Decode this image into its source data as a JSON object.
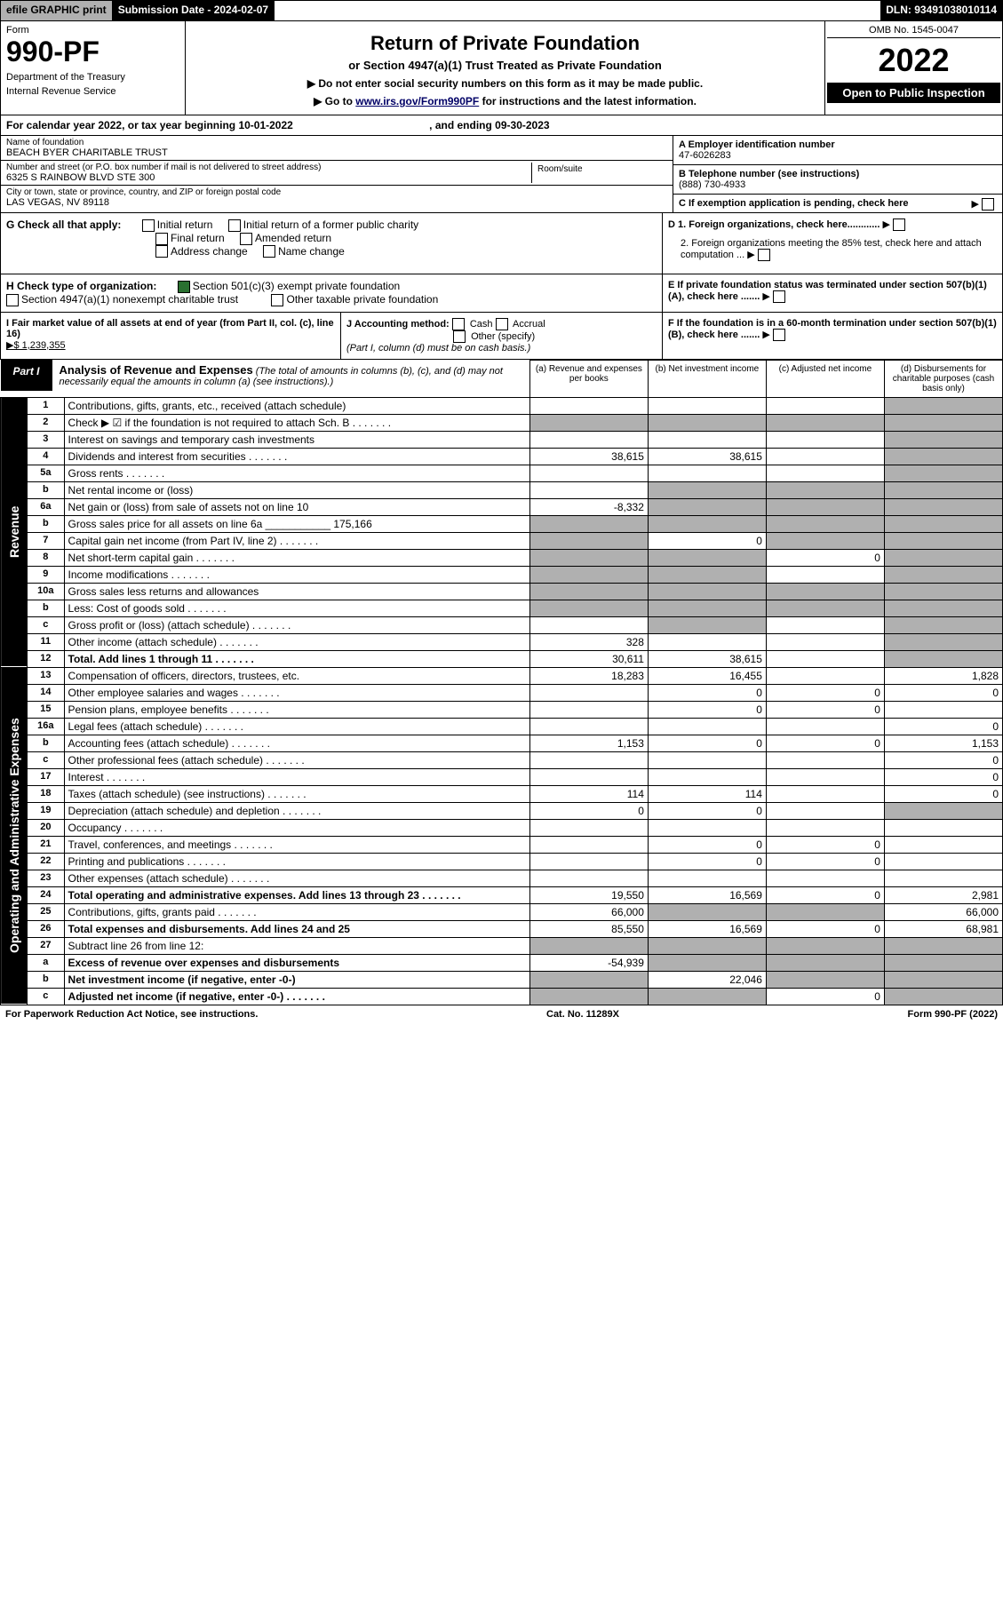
{
  "top_bar": {
    "efile": "efile GRAPHIC print",
    "sub_date_label": "Submission Date - 2024-02-07",
    "dln": "DLN: 93491038010114"
  },
  "header": {
    "form_label": "Form",
    "form_number": "990-PF",
    "dept1": "Department of the Treasury",
    "dept2": "Internal Revenue Service",
    "title": "Return of Private Foundation",
    "subtitle": "or Section 4947(a)(1) Trust Treated as Private Foundation",
    "inst1": "▶ Do not enter social security numbers on this form as it may be made public.",
    "inst2": "▶ Go to ",
    "inst2_link": "www.irs.gov/Form990PF",
    "inst2_suffix": " for instructions and the latest information.",
    "omb": "OMB No. 1545-0047",
    "year": "2022",
    "open_public": "Open to Public Inspection"
  },
  "calyear": "For calendar year 2022, or tax year beginning 10-01-2022",
  "calyear_end": ", and ending 09-30-2023",
  "entity": {
    "name_label": "Name of foundation",
    "name": "BEACH BYER CHARITABLE TRUST",
    "addr_label": "Number and street (or P.O. box number if mail is not delivered to street address)",
    "addr": "6325 S RAINBOW BLVD STE 300",
    "room_label": "Room/suite",
    "city_label": "City or town, state or province, country, and ZIP or foreign postal code",
    "city": "LAS VEGAS, NV  89118",
    "ein_label": "A Employer identification number",
    "ein": "47-6026283",
    "tel_label": "B Telephone number (see instructions)",
    "tel": "(888) 730-4933",
    "c_label": "C If exemption application is pending, check here"
  },
  "checks_G": {
    "label": "G Check all that apply:",
    "items": [
      "Initial return",
      "Initial return of a former public charity",
      "Final return",
      "Amended return",
      "Address change",
      "Name change"
    ]
  },
  "checks_D": {
    "d1": "D 1. Foreign organizations, check here............",
    "d2": "2. Foreign organizations meeting the 85% test, check here and attach computation ..."
  },
  "checks_H": {
    "label": "H Check type of organization:",
    "opt1": "Section 501(c)(3) exempt private foundation",
    "opt2": "Section 4947(a)(1) nonexempt charitable trust",
    "opt3": "Other taxable private foundation"
  },
  "checks_E": "E  If private foundation status was terminated under section 507(b)(1)(A), check here .......",
  "sec_I": {
    "label": "I Fair market value of all assets at end of year (from Part II, col. (c), line 16)",
    "val": "▶$  1,239,355"
  },
  "sec_J": {
    "label": "J Accounting method:",
    "cash": "Cash",
    "accrual": "Accrual",
    "other": "Other (specify)",
    "note": "(Part I, column (d) must be on cash basis.)"
  },
  "sec_F": "F  If the foundation is in a 60-month termination under section 507(b)(1)(B), check here .......",
  "part1": {
    "label": "Part I",
    "title": "Analysis of Revenue and Expenses",
    "title_note": "(The total of amounts in columns (b), (c), and (d) may not necessarily equal the amounts in column (a) (see instructions).)"
  },
  "columns": {
    "a": "(a) Revenue and expenses per books",
    "b": "(b) Net investment income",
    "c": "(c) Adjusted net income",
    "d": "(d) Disbursements for charitable purposes (cash basis only)"
  },
  "vert_labels": {
    "revenue": "Revenue",
    "expenses": "Operating and Administrative Expenses"
  },
  "rows": [
    {
      "no": "1",
      "desc": "Contributions, gifts, grants, etc., received (attach schedule)",
      "a": "",
      "b": "",
      "c": "",
      "d": "",
      "d_shaded": true
    },
    {
      "no": "2",
      "desc": "Check ▶ ☑ if the foundation is not required to attach Sch. B",
      "dots": true,
      "a": "",
      "b": "",
      "c": "",
      "d": "",
      "all_shaded": true
    },
    {
      "no": "3",
      "desc": "Interest on savings and temporary cash investments",
      "a": "",
      "b": "",
      "c": "",
      "d": "",
      "d_shaded": true
    },
    {
      "no": "4",
      "desc": "Dividends and interest from securities",
      "dots": true,
      "a": "38,615",
      "b": "38,615",
      "c": "",
      "d": "",
      "d_shaded": true
    },
    {
      "no": "5a",
      "desc": "Gross rents",
      "dots": true,
      "a": "",
      "b": "",
      "c": "",
      "d": "",
      "d_shaded": true
    },
    {
      "no": "b",
      "desc": "Net rental income or (loss)",
      "a": "",
      "b": "",
      "c": "",
      "d": "",
      "bcd_shaded": true
    },
    {
      "no": "6a",
      "desc": "Net gain or (loss) from sale of assets not on line 10",
      "a": "-8,332",
      "b": "",
      "c": "",
      "d": "",
      "bcd_shaded": true
    },
    {
      "no": "b",
      "desc": "Gross sales price for all assets on line 6a",
      "inline_val": "175,166",
      "all_shaded": true
    },
    {
      "no": "7",
      "desc": "Capital gain net income (from Part IV, line 2)",
      "dots": true,
      "a": "",
      "b": "0",
      "c": "",
      "d": "",
      "a_shaded": true,
      "cd_shaded": true
    },
    {
      "no": "8",
      "desc": "Net short-term capital gain",
      "dots": true,
      "a": "",
      "b": "",
      "c": "0",
      "d": "",
      "ab_shaded": true,
      "d_shaded": true
    },
    {
      "no": "9",
      "desc": "Income modifications",
      "dots": true,
      "a": "",
      "b": "",
      "c": "",
      "d": "",
      "ab_shaded": true,
      "d_shaded": true
    },
    {
      "no": "10a",
      "desc": "Gross sales less returns and allowances",
      "all_shaded": true
    },
    {
      "no": "b",
      "desc": "Less: Cost of goods sold",
      "dots": true,
      "all_shaded": true
    },
    {
      "no": "c",
      "desc": "Gross profit or (loss) (attach schedule)",
      "dots": true,
      "a": "",
      "b": "",
      "c": "",
      "d": "",
      "b_shaded": true,
      "d_shaded": true
    },
    {
      "no": "11",
      "desc": "Other income (attach schedule)",
      "dots": true,
      "a": "328",
      "b": "",
      "c": "",
      "d": "",
      "d_shaded": true
    },
    {
      "no": "12",
      "desc": "Total. Add lines 1 through 11",
      "dots": true,
      "bold": true,
      "a": "30,611",
      "b": "38,615",
      "c": "",
      "d": "",
      "d_shaded": true
    }
  ],
  "exp_rows": [
    {
      "no": "13",
      "desc": "Compensation of officers, directors, trustees, etc.",
      "a": "18,283",
      "b": "16,455",
      "c": "",
      "d": "1,828"
    },
    {
      "no": "14",
      "desc": "Other employee salaries and wages",
      "dots": true,
      "a": "",
      "b": "0",
      "c": "0",
      "d": "0"
    },
    {
      "no": "15",
      "desc": "Pension plans, employee benefits",
      "dots": true,
      "a": "",
      "b": "0",
      "c": "0",
      "d": ""
    },
    {
      "no": "16a",
      "desc": "Legal fees (attach schedule)",
      "dots": true,
      "a": "",
      "b": "",
      "c": "",
      "d": "0"
    },
    {
      "no": "b",
      "desc": "Accounting fees (attach schedule)",
      "dots": true,
      "a": "1,153",
      "b": "0",
      "c": "0",
      "d": "1,153"
    },
    {
      "no": "c",
      "desc": "Other professional fees (attach schedule)",
      "dots": true,
      "a": "",
      "b": "",
      "c": "",
      "d": "0"
    },
    {
      "no": "17",
      "desc": "Interest",
      "dots": true,
      "a": "",
      "b": "",
      "c": "",
      "d": "0"
    },
    {
      "no": "18",
      "desc": "Taxes (attach schedule) (see instructions)",
      "dots": true,
      "a": "114",
      "b": "114",
      "c": "",
      "d": "0"
    },
    {
      "no": "19",
      "desc": "Depreciation (attach schedule) and depletion",
      "dots": true,
      "a": "0",
      "b": "0",
      "c": "",
      "d": "",
      "d_shaded": true
    },
    {
      "no": "20",
      "desc": "Occupancy",
      "dots": true,
      "a": "",
      "b": "",
      "c": "",
      "d": ""
    },
    {
      "no": "21",
      "desc": "Travel, conferences, and meetings",
      "dots": true,
      "a": "",
      "b": "0",
      "c": "0",
      "d": ""
    },
    {
      "no": "22",
      "desc": "Printing and publications",
      "dots": true,
      "a": "",
      "b": "0",
      "c": "0",
      "d": ""
    },
    {
      "no": "23",
      "desc": "Other expenses (attach schedule)",
      "dots": true,
      "a": "",
      "b": "",
      "c": "",
      "d": ""
    },
    {
      "no": "24",
      "desc": "Total operating and administrative expenses. Add lines 13 through 23",
      "dots": true,
      "bold": true,
      "a": "19,550",
      "b": "16,569",
      "c": "0",
      "d": "2,981"
    },
    {
      "no": "25",
      "desc": "Contributions, gifts, grants paid",
      "dots": true,
      "a": "66,000",
      "b": "",
      "c": "",
      "d": "66,000",
      "bc_shaded": true
    },
    {
      "no": "26",
      "desc": "Total expenses and disbursements. Add lines 24 and 25",
      "bold": true,
      "a": "85,550",
      "b": "16,569",
      "c": "0",
      "d": "68,981"
    },
    {
      "no": "27",
      "desc": "Subtract line 26 from line 12:",
      "all_shaded": true
    },
    {
      "no": "a",
      "desc": "Excess of revenue over expenses and disbursements",
      "bold": true,
      "a": "-54,939",
      "b": "",
      "c": "",
      "d": "",
      "bcd_shaded": true
    },
    {
      "no": "b",
      "desc": "Net investment income (if negative, enter -0-)",
      "bold": true,
      "a": "",
      "b": "22,046",
      "c": "",
      "d": "",
      "a_shaded": true,
      "cd_shaded": true
    },
    {
      "no": "c",
      "desc": "Adjusted net income (if negative, enter -0-)",
      "bold": true,
      "dots": true,
      "a": "",
      "b": "",
      "c": "0",
      "d": "",
      "ab_shaded": true,
      "d_shaded": true
    }
  ],
  "footer": {
    "left": "For Paperwork Reduction Act Notice, see instructions.",
    "mid": "Cat. No. 11289X",
    "right": "Form 990-PF (2022)"
  }
}
